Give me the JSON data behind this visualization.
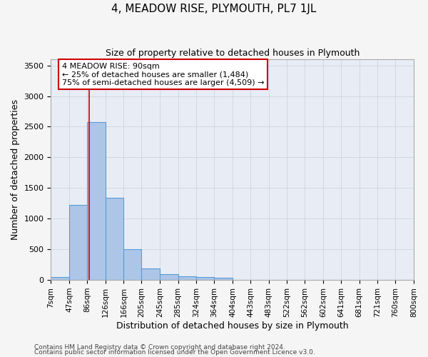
{
  "title": "4, MEADOW RISE, PLYMOUTH, PL7 1JL",
  "subtitle": "Size of property relative to detached houses in Plymouth",
  "xlabel": "Distribution of detached houses by size in Plymouth",
  "ylabel": "Number of detached properties",
  "bin_labels": [
    "7sqm",
    "47sqm",
    "86sqm",
    "126sqm",
    "166sqm",
    "205sqm",
    "245sqm",
    "285sqm",
    "324sqm",
    "364sqm",
    "404sqm",
    "443sqm",
    "483sqm",
    "522sqm",
    "562sqm",
    "602sqm",
    "641sqm",
    "681sqm",
    "721sqm",
    "760sqm",
    "800sqm"
  ],
  "bin_edges": [
    7,
    47,
    86,
    126,
    166,
    205,
    245,
    285,
    324,
    364,
    404,
    443,
    483,
    522,
    562,
    602,
    641,
    681,
    721,
    760,
    800
  ],
  "bar_heights": [
    50,
    1230,
    2580,
    1340,
    500,
    190,
    100,
    55,
    50,
    35,
    5,
    2,
    0,
    0,
    0,
    0,
    0,
    0,
    0,
    0
  ],
  "bar_color": "#adc6e8",
  "bar_edgecolor": "#5b9bd5",
  "bar_linewidth": 0.8,
  "vline_x": 90,
  "vline_color": "#cc0000",
  "vline_linewidth": 1.2,
  "ylim": [
    0,
    3600
  ],
  "yticks": [
    0,
    500,
    1000,
    1500,
    2000,
    2500,
    3000,
    3500
  ],
  "annotation_text": "4 MEADOW RISE: 90sqm\n← 25% of detached houses are smaller (1,484)\n75% of semi-detached houses are larger (4,509) →",
  "annotation_box_color": "#ffffff",
  "annotation_box_edgecolor": "#cc0000",
  "grid_color": "#cdd5e0",
  "background_color": "#e8edf5",
  "fig_background_color": "#f5f5f5",
  "title_fontsize": 11,
  "subtitle_fontsize": 9,
  "xlabel_fontsize": 9,
  "ylabel_fontsize": 9,
  "tick_fontsize": 8,
  "annotation_fontsize": 8,
  "footer_line1": "Contains HM Land Registry data © Crown copyright and database right 2024.",
  "footer_line2": "Contains public sector information licensed under the Open Government Licence v3.0.",
  "footer_fontsize": 6.5
}
